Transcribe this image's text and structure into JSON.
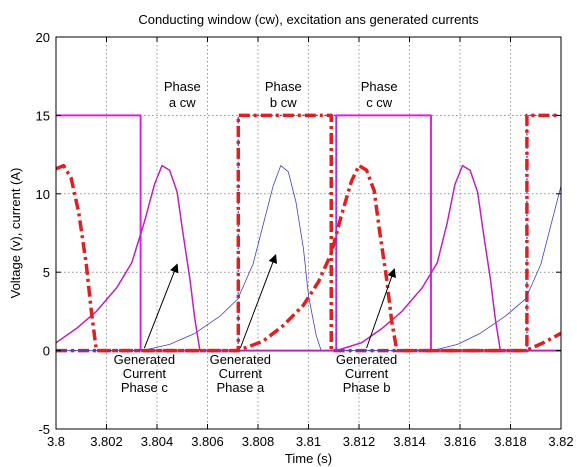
{
  "chart_data": {
    "type": "line",
    "title": "Conducting window (cw), excitation ans generated currents",
    "xlabel": "Time (s)",
    "ylabel": "Voltage (v), current (A)",
    "xlim": [
      3.8,
      3.82
    ],
    "ylim": [
      -5,
      20
    ],
    "xticks": [
      3.8,
      3.802,
      3.804,
      3.806,
      3.808,
      3.81,
      3.812,
      3.814,
      3.816,
      3.818,
      3.82
    ],
    "xtick_labels": [
      "3.8",
      "3.802",
      "3.804",
      "3.806",
      "3.808",
      "3.81",
      "3.812",
      "3.814",
      "3.816",
      "3.818",
      "3.82"
    ],
    "yticks": [
      -5,
      0,
      5,
      10,
      15,
      20
    ],
    "ytick_labels": [
      "-5",
      "0",
      "5",
      "10",
      "15",
      "20"
    ],
    "grid": true,
    "series": [
      {
        "key": "cw-a",
        "color": "#e020e0",
        "style": "solid",
        "width": 2,
        "points": [
          [
            3.8,
            15
          ],
          [
            3.80335,
            15
          ],
          [
            3.80335,
            0
          ],
          [
            3.8111,
            0
          ],
          [
            3.8111,
            15
          ],
          [
            3.81485,
            15
          ],
          [
            3.81485,
            0
          ],
          [
            3.82,
            0
          ]
        ]
      },
      {
        "key": "cw-b",
        "color": "#5050d8",
        "style": "dotted",
        "width": 1.5,
        "points": [
          [
            3.8,
            0
          ],
          [
            3.80722,
            0
          ],
          [
            3.80722,
            15
          ],
          [
            3.8111,
            15
          ],
          [
            3.8111,
            0
          ],
          [
            3.81865,
            0
          ],
          [
            3.81865,
            15
          ],
          [
            3.82,
            15
          ]
        ]
      },
      {
        "key": "cw-b-dashdot",
        "color": "#e02020",
        "style": "dashdot",
        "width": 3.5,
        "points": [
          [
            3.8,
            0
          ],
          [
            3.80722,
            0
          ],
          [
            3.80722,
            15
          ],
          [
            3.8109,
            15
          ],
          [
            3.8109,
            0
          ],
          [
            3.81865,
            0
          ],
          [
            3.81865,
            15
          ],
          [
            3.82,
            15
          ]
        ]
      },
      {
        "key": "exc-a",
        "color": "#4040c8",
        "style": "solid",
        "width": 0.8,
        "points": [
          [
            3.8,
            0
          ],
          [
            3.8034,
            0
          ],
          [
            3.8045,
            0.4
          ],
          [
            3.8055,
            1.1
          ],
          [
            3.8065,
            2.2
          ],
          [
            3.8072,
            3.3
          ],
          [
            3.8078,
            5.5
          ],
          [
            3.8082,
            8
          ],
          [
            3.8086,
            10.5
          ],
          [
            3.8089,
            11.8
          ],
          [
            3.8092,
            11.4
          ],
          [
            3.8095,
            9.5
          ],
          [
            3.8098,
            6.5
          ],
          [
            3.81,
            3.5
          ],
          [
            3.8103,
            1
          ],
          [
            3.8105,
            0
          ],
          [
            3.8111,
            0
          ]
        ]
      },
      {
        "key": "exc-b",
        "color": "#4040c8",
        "style": "solid",
        "width": 0.8,
        "points": [
          [
            3.8111,
            0
          ],
          [
            3.8149,
            0
          ],
          [
            3.8159,
            0.4
          ],
          [
            3.8168,
            1.1
          ],
          [
            3.8178,
            2.2
          ],
          [
            3.8186,
            3.3
          ],
          [
            3.8192,
            5.5
          ],
          [
            3.8196,
            8
          ],
          [
            3.82,
            10.5
          ]
        ]
      },
      {
        "key": "gen-c",
        "color": "#c020c0",
        "style": "solid",
        "width": 1.5,
        "points": [
          [
            3.8,
            0.5
          ],
          [
            3.8008,
            1.4
          ],
          [
            3.8016,
            2.5
          ],
          [
            3.8024,
            4
          ],
          [
            3.803,
            5.6
          ],
          [
            3.8035,
            8.2
          ],
          [
            3.8039,
            10.6
          ],
          [
            3.8042,
            11.8
          ],
          [
            3.8045,
            11.5
          ],
          [
            3.8048,
            10.1
          ],
          [
            3.805,
            7.8
          ],
          [
            3.8053,
            4.6
          ],
          [
            3.8055,
            2
          ],
          [
            3.8057,
            0
          ],
          [
            3.8111,
            0
          ],
          [
            3.8121,
            0.5
          ],
          [
            3.8129,
            1.4
          ],
          [
            3.8137,
            2.5
          ],
          [
            3.8145,
            4
          ],
          [
            3.8151,
            5.6
          ],
          [
            3.8155,
            8.2
          ],
          [
            3.8158,
            10.6
          ],
          [
            3.8161,
            11.8
          ],
          [
            3.8164,
            11.5
          ],
          [
            3.8167,
            10.1
          ],
          [
            3.8169,
            7.8
          ],
          [
            3.8172,
            4.6
          ],
          [
            3.8174,
            2
          ],
          [
            3.8176,
            0
          ],
          [
            3.82,
            0
          ]
        ]
      },
      {
        "key": "gen-b",
        "color": "#e02020",
        "style": "dashdot",
        "width": 3.5,
        "points": [
          [
            3.8,
            11.6
          ],
          [
            3.8003,
            11.8
          ],
          [
            3.8006,
            11
          ],
          [
            3.8009,
            8.8
          ],
          [
            3.8012,
            5.5
          ],
          [
            3.8014,
            2.5
          ],
          [
            3.8016,
            0
          ],
          [
            3.8072,
            0
          ],
          [
            3.8082,
            0.6
          ],
          [
            3.809,
            1.6
          ],
          [
            3.8098,
            2.9
          ],
          [
            3.8104,
            4.4
          ],
          [
            3.8109,
            6.2
          ],
          [
            3.8113,
            8.6
          ],
          [
            3.8117,
            10.8
          ],
          [
            3.812,
            11.8
          ],
          [
            3.8123,
            11.5
          ],
          [
            3.8126,
            10.2
          ],
          [
            3.8128,
            7.8
          ],
          [
            3.8131,
            4.5
          ],
          [
            3.8133,
            1.8
          ],
          [
            3.8135,
            0
          ],
          [
            3.8186,
            0
          ],
          [
            3.8193,
            0.5
          ],
          [
            3.82,
            1.1
          ]
        ]
      }
    ],
    "annotations": [
      {
        "lines": [
          "Phase",
          "a  cw"
        ],
        "x": 3.805,
        "y": [
          16.8,
          15.8
        ]
      },
      {
        "lines": [
          "Phase",
          "b  cw"
        ],
        "x": 3.809,
        "y": [
          16.8,
          15.8
        ]
      },
      {
        "lines": [
          "Phase",
          "c  cw"
        ],
        "x": 3.8128,
        "y": [
          16.8,
          15.8
        ]
      },
      {
        "lines": [
          "Generated",
          "Current",
          "Phase c"
        ],
        "x": 3.8035,
        "y": [
          -0.6,
          -1.5,
          -2.4
        ],
        "arrow_to": [
          3.8048,
          5.5
        ]
      },
      {
        "lines": [
          "Generated",
          "Current",
          "Phase a"
        ],
        "x": 3.8073,
        "y": [
          -0.6,
          -1.5,
          -2.4
        ],
        "arrow_to": [
          3.8087,
          6.1
        ]
      },
      {
        "lines": [
          "Generated",
          "Current",
          "Phase b"
        ],
        "x": 3.8123,
        "y": [
          -0.6,
          -1.5,
          -2.4
        ],
        "arrow_to": [
          3.8134,
          5.2
        ]
      }
    ]
  }
}
